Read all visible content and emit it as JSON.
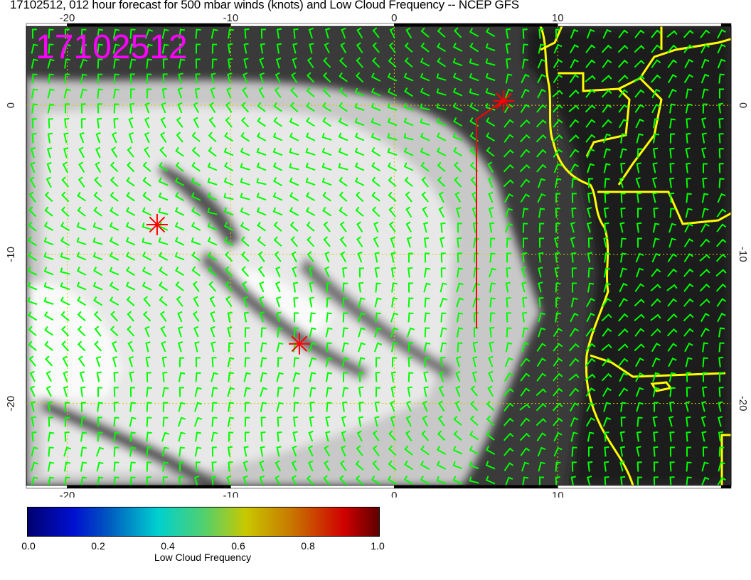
{
  "title": "17102512, 012 hour forecast for 500 mbar winds (knots) and Low Cloud Frequency -- NCEP GFS",
  "date_stamp": "17102512",
  "map": {
    "lon_range": [
      -22.5,
      20.6
    ],
    "lat_range": [
      -25.5,
      5.3
    ],
    "lon_ticks": [
      "-20",
      "-10",
      "0",
      "10"
    ],
    "lat_ticks": [
      "0",
      "-10",
      "-20"
    ],
    "colors": {
      "barb": "#00ff00",
      "coast": "#ffff00",
      "marker": "#ff0000",
      "stamp": "#ff00ff",
      "grid": "#ffff00"
    },
    "markers": [
      {
        "lon": -14.5,
        "lat": -8.0
      },
      {
        "lon": -5.8,
        "lat": -16.0
      },
      {
        "lon": 6.7,
        "lat": 0.3
      }
    ]
  },
  "colorbar": {
    "label": "Low Cloud Frequency",
    "ticks": [
      "0.0",
      "0.2",
      "0.4",
      "0.6",
      "0.8",
      "1.0"
    ],
    "range": [
      0.0,
      1.0
    ]
  }
}
